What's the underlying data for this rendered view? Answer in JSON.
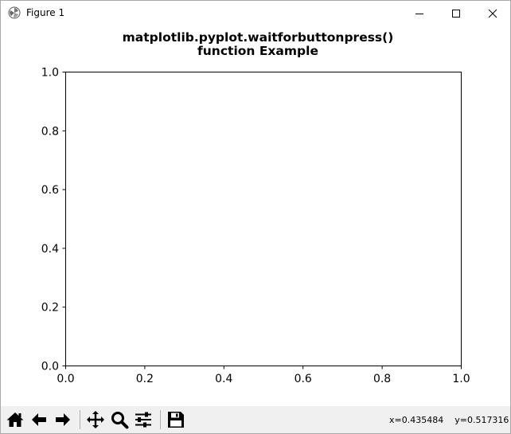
{
  "window": {
    "title": "Figure 1",
    "icons": {
      "app": "matplotlib-logo-icon",
      "minimize": "minimize-icon",
      "maximize": "maximize-icon",
      "close": "close-icon"
    }
  },
  "figure": {
    "title_line1": "matplotlib.pyplot.waitforbuttonpress()",
    "title_line2": "function Example"
  },
  "chart_data": {
    "type": "line",
    "title": "matplotlib.pyplot.waitforbuttonpress()\nfunction Example",
    "xlim": [
      0.0,
      1.0
    ],
    "ylim": [
      0.0,
      1.0
    ],
    "x_ticks": [
      "0.0",
      "0.2",
      "0.4",
      "0.6",
      "0.8",
      "1.0"
    ],
    "y_ticks": [
      "0.0",
      "0.2",
      "0.4",
      "0.6",
      "0.8",
      "1.0"
    ],
    "series": [],
    "grid": false
  },
  "toolbar": {
    "buttons": [
      {
        "name": "home-button",
        "icon": "home-icon"
      },
      {
        "name": "back-button",
        "icon": "back-arrow-icon"
      },
      {
        "name": "forward-button",
        "icon": "forward-arrow-icon"
      },
      {
        "name": "pan-button",
        "icon": "pan-move-icon"
      },
      {
        "name": "zoom-button",
        "icon": "zoom-magnifier-icon"
      },
      {
        "name": "configure-subplots-button",
        "icon": "sliders-icon"
      },
      {
        "name": "save-button",
        "icon": "floppy-disk-icon"
      }
    ],
    "coords": {
      "x": "x=0.435484",
      "y": "y=0.517316"
    }
  }
}
